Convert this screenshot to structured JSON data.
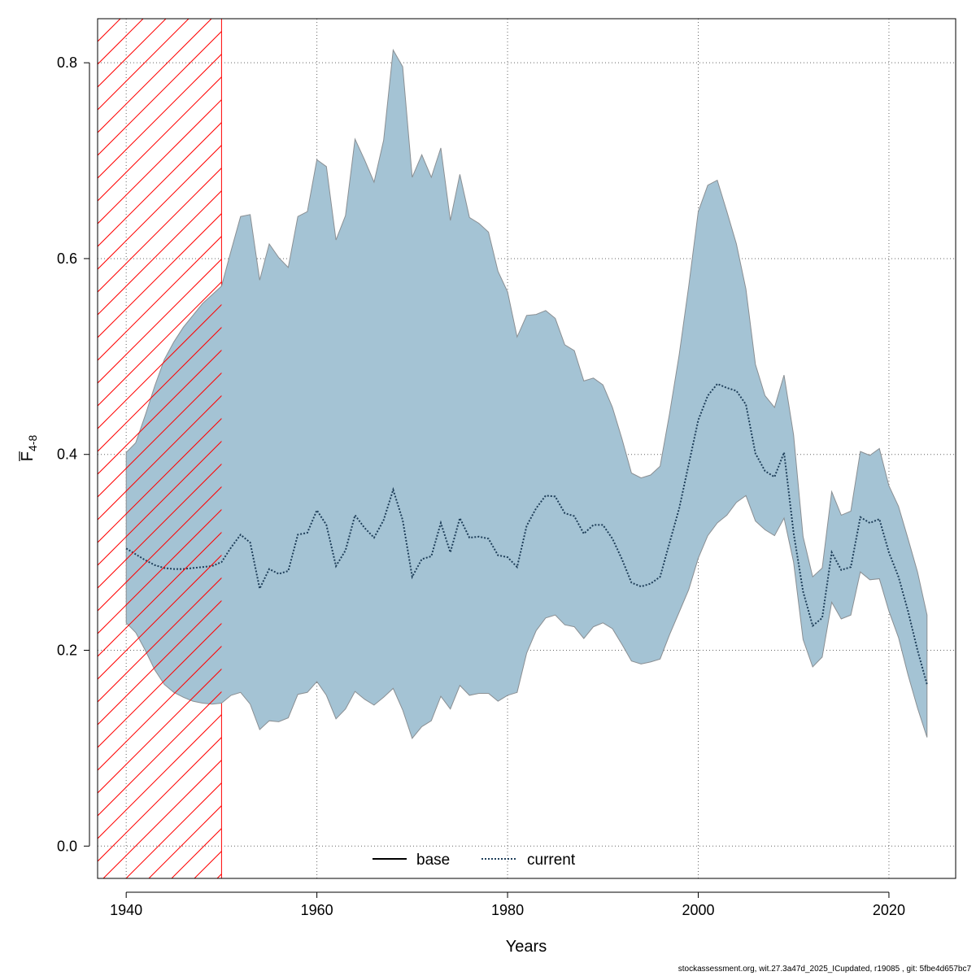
{
  "chart_data": {
    "type": "area",
    "title": "",
    "xlabel": "Years",
    "ylabel_main": "F",
    "ylabel_sub": "4-8",
    "xlim": [
      1937,
      2027
    ],
    "ylim": [
      -0.033,
      0.845
    ],
    "xticks": [
      1940,
      1960,
      1980,
      2000,
      2020
    ],
    "xtick_labels": [
      "1940",
      "1960",
      "1980",
      "2000",
      "2020"
    ],
    "yticks": [
      0.0,
      0.2,
      0.4,
      0.6,
      0.8
    ],
    "ytick_labels": [
      "0.0",
      "0.2",
      "0.4",
      "0.6",
      "0.8"
    ],
    "grid": true,
    "legend_position": "bottom-center",
    "shaded_period": {
      "x_start": 1937,
      "x_end": 1950
    },
    "colors": {
      "band_fill": "#a4c3d4",
      "band_edge": "#8a8f93",
      "current_line": "#1f3f5a",
      "hatch": "#ff0000",
      "grid": "#666666"
    },
    "years": [
      1940,
      1941,
      1942,
      1943,
      1944,
      1945,
      1946,
      1947,
      1948,
      1949,
      1950,
      1951,
      1952,
      1953,
      1954,
      1955,
      1956,
      1957,
      1958,
      1959,
      1960,
      1961,
      1962,
      1963,
      1964,
      1965,
      1966,
      1967,
      1968,
      1969,
      1970,
      1971,
      1972,
      1973,
      1974,
      1975,
      1976,
      1977,
      1978,
      1979,
      1980,
      1981,
      1982,
      1983,
      1984,
      1985,
      1986,
      1987,
      1988,
      1989,
      1990,
      1991,
      1992,
      1993,
      1994,
      1995,
      1996,
      1997,
      1998,
      1999,
      2000,
      2001,
      2002,
      2003,
      2004,
      2005,
      2006,
      2007,
      2008,
      2009,
      2010,
      2011,
      2012,
      2013,
      2014,
      2015,
      2016,
      2017,
      2018,
      2019,
      2020,
      2021,
      2022,
      2023,
      2024
    ],
    "series": [
      {
        "name": "current",
        "style": "dotted",
        "values": [
          0.304,
          0.298,
          0.292,
          0.287,
          0.284,
          0.283,
          0.283,
          0.284,
          0.285,
          0.286,
          0.29,
          0.305,
          0.318,
          0.31,
          0.263,
          0.283,
          0.278,
          0.281,
          0.318,
          0.32,
          0.343,
          0.328,
          0.286,
          0.302,
          0.338,
          0.325,
          0.315,
          0.333,
          0.364,
          0.333,
          0.275,
          0.293,
          0.296,
          0.33,
          0.3,
          0.335,
          0.315,
          0.316,
          0.314,
          0.297,
          0.295,
          0.285,
          0.327,
          0.345,
          0.358,
          0.357,
          0.34,
          0.337,
          0.319,
          0.328,
          0.328,
          0.314,
          0.293,
          0.269,
          0.265,
          0.268,
          0.275,
          0.31,
          0.345,
          0.39,
          0.435,
          0.46,
          0.472,
          0.468,
          0.465,
          0.451,
          0.401,
          0.383,
          0.377,
          0.402,
          0.32,
          0.26,
          0.225,
          0.233,
          0.3,
          0.282,
          0.285,
          0.336,
          0.33,
          0.334,
          0.3,
          0.275,
          0.24,
          0.2,
          0.165
        ]
      },
      {
        "name": "upper",
        "values": [
          0.402,
          0.412,
          0.44,
          0.47,
          0.497,
          0.515,
          0.53,
          0.542,
          0.554,
          0.563,
          0.572,
          0.608,
          0.643,
          0.645,
          0.578,
          0.615,
          0.601,
          0.591,
          0.643,
          0.648,
          0.701,
          0.694,
          0.619,
          0.644,
          0.722,
          0.701,
          0.678,
          0.721,
          0.813,
          0.796,
          0.683,
          0.706,
          0.683,
          0.713,
          0.639,
          0.686,
          0.642,
          0.636,
          0.627,
          0.587,
          0.566,
          0.52,
          0.542,
          0.543,
          0.547,
          0.539,
          0.512,
          0.506,
          0.475,
          0.478,
          0.471,
          0.448,
          0.416,
          0.381,
          0.376,
          0.379,
          0.388,
          0.442,
          0.502,
          0.572,
          0.648,
          0.675,
          0.68,
          0.648,
          0.615,
          0.569,
          0.492,
          0.46,
          0.448,
          0.481,
          0.42,
          0.316,
          0.275,
          0.284,
          0.362,
          0.338,
          0.342,
          0.403,
          0.399,
          0.406,
          0.368,
          0.347,
          0.314,
          0.28,
          0.236
        ]
      },
      {
        "name": "lower",
        "values": [
          0.228,
          0.218,
          0.2,
          0.18,
          0.165,
          0.157,
          0.152,
          0.148,
          0.146,
          0.145,
          0.146,
          0.154,
          0.157,
          0.145,
          0.119,
          0.128,
          0.127,
          0.131,
          0.155,
          0.157,
          0.168,
          0.154,
          0.13,
          0.14,
          0.158,
          0.15,
          0.144,
          0.152,
          0.161,
          0.139,
          0.11,
          0.122,
          0.128,
          0.153,
          0.14,
          0.164,
          0.154,
          0.156,
          0.156,
          0.148,
          0.154,
          0.157,
          0.197,
          0.22,
          0.233,
          0.236,
          0.226,
          0.224,
          0.212,
          0.224,
          0.228,
          0.222,
          0.206,
          0.189,
          0.186,
          0.188,
          0.191,
          0.216,
          0.239,
          0.262,
          0.294,
          0.317,
          0.33,
          0.338,
          0.351,
          0.358,
          0.332,
          0.323,
          0.317,
          0.335,
          0.29,
          0.211,
          0.183,
          0.193,
          0.249,
          0.232,
          0.236,
          0.28,
          0.272,
          0.273,
          0.24,
          0.213,
          0.175,
          0.141,
          0.111
        ]
      }
    ],
    "legend": [
      {
        "label": "base",
        "style": "solid"
      },
      {
        "label": "current",
        "style": "dotted"
      }
    ]
  },
  "footer_text": "stockassessment.org, wit.27.3a47d_2025_ICupdated, r19085 , git: 5fbe4d657bc7"
}
